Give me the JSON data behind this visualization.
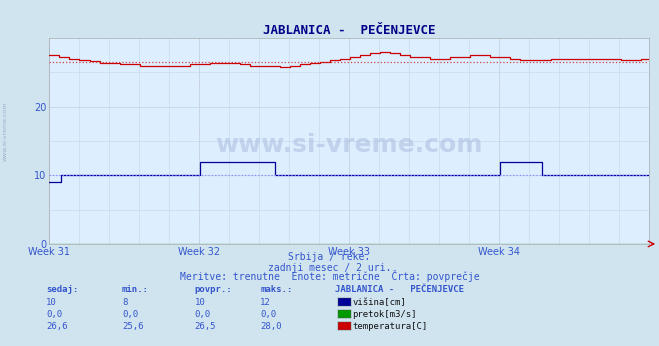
{
  "title": "JABLANICA -  PEČENJEVCE",
  "bg_color": "#d0e4f0",
  "plot_bg_color": "#ddeeff",
  "grid_color_minor": "#c0d8e8",
  "grid_color_major": "#c0d8e8",
  "xlabel_weeks": [
    "Week 31",
    "Week 32",
    "Week 33",
    "Week 34"
  ],
  "ylim": [
    0,
    30
  ],
  "yticks": [
    0,
    10,
    20
  ],
  "n_points": 360,
  "visina_base": 10,
  "visina_avg": 10,
  "temp_avg": 26.5,
  "temp_color": "#cc0000",
  "visina_color": "#000099",
  "pretok_color": "#009900",
  "avg_line_color_blue": "#8888ff",
  "avg_line_color_red": "#cc4444",
  "subtitle1": "Srbija / reke.",
  "subtitle2": "zadnji mesec / 2 uri.",
  "subtitle3": "Meritve: trenutne  Enote: metrične  Črta: povprečje",
  "table_header_cols": [
    "sedaj:",
    "min.:",
    "povpr.:",
    "maks.:"
  ],
  "table_header_title": "JABLANICA -   PEČENJEVCE",
  "table_visina": [
    "10",
    "8",
    "10",
    "12",
    "višina[cm]"
  ],
  "table_pretok": [
    "0,0",
    "0,0",
    "0,0",
    "0,0",
    "pretok[m3/s]"
  ],
  "table_temp": [
    "26,6",
    "25,6",
    "26,5",
    "28,0",
    "temperatura[C]"
  ],
  "text_color": "#3355cc",
  "title_color": "#000088",
  "watermark": "www.si-vreme.com",
  "left_label": "www.si-vreme.com"
}
